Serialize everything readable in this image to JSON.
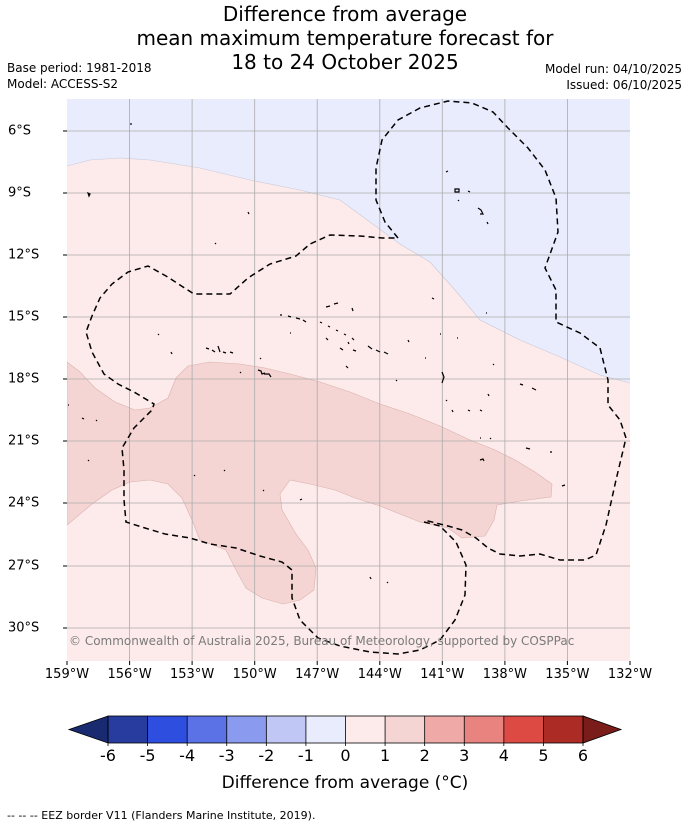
{
  "title": {
    "line1": "Difference from average",
    "line2": "mean maximum temperature forecast for",
    "line3": "18 to 24 October 2025"
  },
  "meta": {
    "base_period": "Base period: 1981-2018",
    "model": "Model: ACCESS-S2",
    "model_run": "Model run: 04/10/2025",
    "issued": "Issued: 06/10/2025"
  },
  "map": {
    "longitude_labels": [
      "159°W",
      "156°W",
      "153°W",
      "150°W",
      "147°W",
      "144°W",
      "141°W",
      "138°W",
      "135°W",
      "132°W"
    ],
    "latitude_labels": [
      "6°S",
      "9°S",
      "12°S",
      "15°S",
      "18°S",
      "21°S",
      "24°S",
      "27°S",
      "30°S"
    ],
    "copyright": "© Commonwealth of Australia 2025, Bureau of Meteorology, supported by COSPPac",
    "colors": {
      "neg0to1": "#e9ecfd",
      "pos0to1": "#fcebea",
      "pos1to2": "#f5d5d4"
    }
  },
  "colorbar": {
    "ticks": [
      "-6",
      "-5",
      "-4",
      "-3",
      "-2",
      "-1",
      "0",
      "1",
      "2",
      "3",
      "4",
      "5",
      "6"
    ],
    "colors": [
      "#283c9f",
      "#2e4ee0",
      "#5a72e6",
      "#8a9aee",
      "#c1c7f4",
      "#e9ecfd",
      "#fcebea",
      "#f5d5d4",
      "#efaaa8",
      "#e8837f",
      "#dc4a43",
      "#ad2b25"
    ],
    "under_color": "#192a70",
    "over_color": "#7a1c1a",
    "label": "Difference from average (°C)"
  },
  "footer": "--  --  -- EEZ border V11 (Flanders Marine Institute, 2019)."
}
